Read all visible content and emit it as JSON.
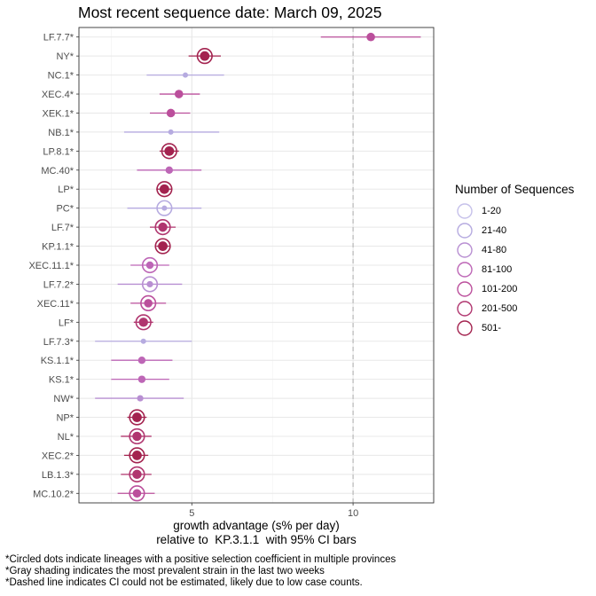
{
  "chart_data": {
    "type": "scatter",
    "title": "Most recent sequence date: March 09, 2025",
    "xlabel_line1": "growth advantage (s% per day)",
    "xlabel_line2": "relative to  KP.3.1.1  with 95% CI bars",
    "xlim": [
      1.5,
      12.5
    ],
    "xticks": [
      5,
      10
    ],
    "dashed_line_x": 10,
    "grid": true,
    "legend_position": "right",
    "legend_title": "Number of Sequences",
    "legend": [
      {
        "label": "1-20",
        "color": "#c6c1ea"
      },
      {
        "label": "21-40",
        "color": "#b6abe0"
      },
      {
        "label": "41-80",
        "color": "#b88fd2"
      },
      {
        "label": "81-100",
        "color": "#bd66b6"
      },
      {
        "label": "101-200",
        "color": "#bb4f9c"
      },
      {
        "label": "201-500",
        "color": "#b0366f"
      },
      {
        "label": "501-",
        "color": "#a3234f"
      }
    ],
    "points": [
      {
        "label": "LF.7.7*",
        "x": 10.55,
        "lo": 9.0,
        "hi": 12.1,
        "bin": 4,
        "circled": false
      },
      {
        "label": "NY*",
        "x": 5.4,
        "lo": 4.9,
        "hi": 5.9,
        "bin": 6,
        "circled": true
      },
      {
        "label": "NC.1*",
        "x": 4.8,
        "lo": 3.6,
        "hi": 6.0,
        "bin": 1,
        "circled": false
      },
      {
        "label": "XEC.4*",
        "x": 4.6,
        "lo": 4.0,
        "hi": 5.25,
        "bin": 4,
        "circled": false
      },
      {
        "label": "XEK.1*",
        "x": 4.35,
        "lo": 3.7,
        "hi": 4.95,
        "bin": 4,
        "circled": false
      },
      {
        "label": "NB.1*",
        "x": 4.35,
        "lo": 2.9,
        "hi": 5.85,
        "bin": 1,
        "circled": false
      },
      {
        "label": "LP.8.1*",
        "x": 4.3,
        "lo": 4.0,
        "hi": 4.6,
        "bin": 6,
        "circled": true
      },
      {
        "label": "MC.40*",
        "x": 4.3,
        "lo": 3.3,
        "hi": 5.3,
        "bin": 3,
        "circled": false
      },
      {
        "label": "LP*",
        "x": 4.15,
        "lo": 3.9,
        "hi": 4.4,
        "bin": 6,
        "circled": true
      },
      {
        "label": "PC*",
        "x": 4.15,
        "lo": 3.0,
        "hi": 5.3,
        "bin": 1,
        "circled": true
      },
      {
        "label": "LF.7*",
        "x": 4.1,
        "lo": 3.7,
        "hi": 4.5,
        "bin": 5,
        "circled": true
      },
      {
        "label": "KP.1.1*",
        "x": 4.1,
        "lo": 3.9,
        "hi": 4.3,
        "bin": 6,
        "circled": true
      },
      {
        "label": "XEC.11.1*",
        "x": 3.7,
        "lo": 3.1,
        "hi": 4.3,
        "bin": 3,
        "circled": true
      },
      {
        "label": "LF.7.2*",
        "x": 3.7,
        "lo": 2.7,
        "hi": 4.7,
        "bin": 2,
        "circled": true
      },
      {
        "label": "XEC.11*",
        "x": 3.65,
        "lo": 3.1,
        "hi": 4.2,
        "bin": 4,
        "circled": true
      },
      {
        "label": "LF*",
        "x": 3.5,
        "lo": 3.2,
        "hi": 3.8,
        "bin": 5,
        "circled": true
      },
      {
        "label": "LF.7.3*",
        "x": 3.5,
        "lo": 2.0,
        "hi": 5.0,
        "bin": 1,
        "circled": false
      },
      {
        "label": "KS.1.1*",
        "x": 3.45,
        "lo": 2.5,
        "hi": 4.4,
        "bin": 3,
        "circled": false
      },
      {
        "label": "KS.1*",
        "x": 3.45,
        "lo": 2.5,
        "hi": 4.3,
        "bin": 3,
        "circled": false
      },
      {
        "label": "NW*",
        "x": 3.4,
        "lo": 2.0,
        "hi": 4.75,
        "bin": 2,
        "circled": false
      },
      {
        "label": "NP*",
        "x": 3.3,
        "lo": 3.0,
        "hi": 3.6,
        "bin": 6,
        "circled": true
      },
      {
        "label": "NL*",
        "x": 3.3,
        "lo": 2.8,
        "hi": 3.75,
        "bin": 5,
        "circled": true
      },
      {
        "label": "XEC.2*",
        "x": 3.3,
        "lo": 2.9,
        "hi": 3.65,
        "bin": 6,
        "circled": true
      },
      {
        "label": "LB.1.3*",
        "x": 3.3,
        "lo": 2.8,
        "hi": 3.75,
        "bin": 5,
        "circled": true
      },
      {
        "label": "MC.10.2*",
        "x": 3.3,
        "lo": 2.7,
        "hi": 3.85,
        "bin": 4,
        "circled": true
      }
    ]
  },
  "footnotes": [
    "*Circled dots indicate lineages with a positive selection coefficient in multiple provinces",
    "*Gray shading indicates the most prevalent strain in the last two weeks",
    "*Dashed line indicates CI could not be estimated, likely due to low case counts."
  ]
}
